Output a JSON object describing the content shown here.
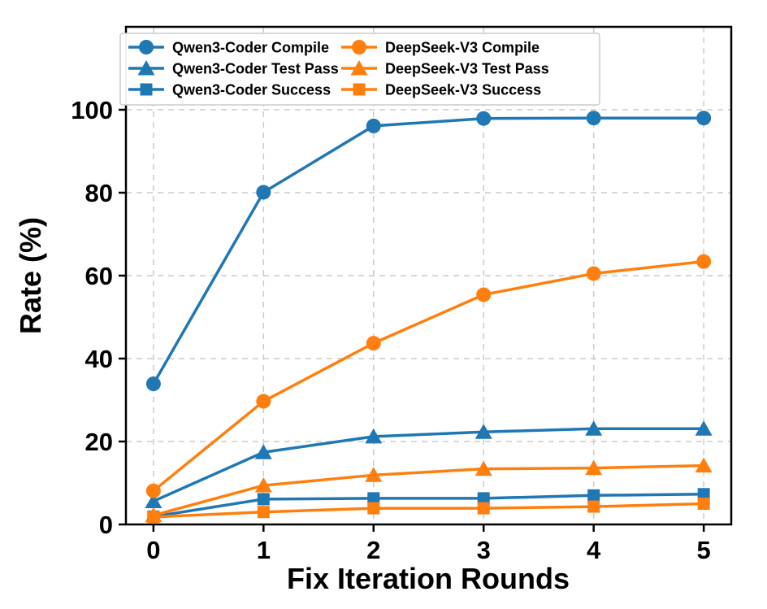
{
  "chart_data": {
    "type": "line",
    "title": "",
    "xlabel": "Fix Iteration Rounds",
    "ylabel": "Rate (%)",
    "x": [
      0,
      1,
      2,
      3,
      4,
      5
    ],
    "xtick_labels": [
      "0",
      "1",
      "2",
      "3",
      "4",
      "5"
    ],
    "ytick_labels": [
      "0",
      "20",
      "40",
      "60",
      "80",
      "100"
    ],
    "yticks": [
      0,
      20,
      40,
      60,
      80,
      100
    ],
    "xlim": [
      -0.25,
      5.25
    ],
    "ylim": [
      0,
      120
    ],
    "grid": "dashed-both-axes",
    "legend_position": "upper-center-inside-2-columns",
    "colors": {
      "blue": "#1f77b4",
      "orange": "#ff7f0e",
      "grid": "#cccccc",
      "frame": "#000000"
    },
    "series": [
      {
        "name": "Qwen3-Coder Compile",
        "color": "#1f77b4",
        "marker": "circle",
        "values": [
          33.9,
          80.1,
          96.1,
          97.9,
          98.0,
          98.0
        ]
      },
      {
        "name": "Qwen3-Coder Test Pass",
        "color": "#1f77b4",
        "marker": "triangle",
        "values": [
          5.6,
          17.4,
          21.2,
          22.3,
          23.1,
          23.1
        ]
      },
      {
        "name": "Qwen3-Coder Success",
        "color": "#1f77b4",
        "marker": "square",
        "values": [
          1.9,
          6.1,
          6.3,
          6.3,
          7.0,
          7.3
        ]
      },
      {
        "name": "DeepSeek-V3 Compile",
        "color": "#ff7f0e",
        "marker": "circle",
        "values": [
          8.1,
          29.7,
          43.7,
          55.4,
          60.5,
          63.4
        ]
      },
      {
        "name": "DeepSeek-V3 Test Pass",
        "color": "#ff7f0e",
        "marker": "triangle",
        "values": [
          2.2,
          9.4,
          11.9,
          13.4,
          13.6,
          14.2
        ]
      },
      {
        "name": "DeepSeek-V3 Success",
        "color": "#ff7f0e",
        "marker": "square",
        "values": [
          1.8,
          3.0,
          3.9,
          3.9,
          4.3,
          5.0
        ]
      }
    ]
  }
}
